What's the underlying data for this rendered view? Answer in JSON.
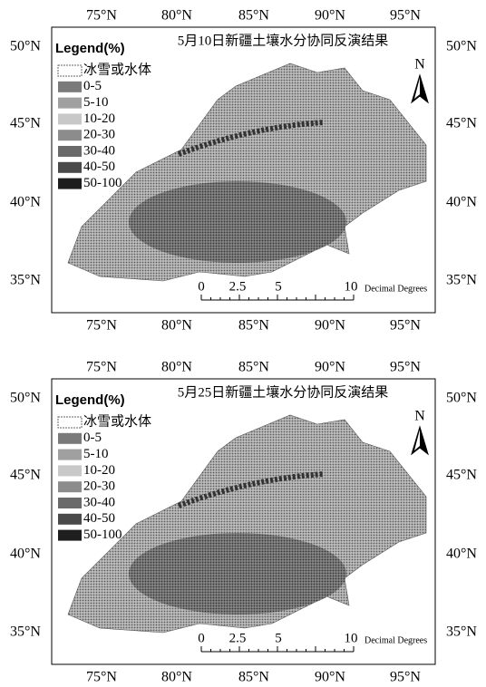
{
  "panels": [
    {
      "title": "5月10日新疆土壤水分协同反演结果",
      "legend_title": "Legend(%)",
      "legend": [
        "冰雪或水体",
        "0-5",
        "5-10",
        "10-20",
        "20-30",
        "30-40",
        "40-50",
        "50-100"
      ],
      "top_labels": [
        "75°N",
        "80°N",
        "85°N",
        "90°N",
        "95°N"
      ],
      "bottom_labels": [
        "75°N",
        "80°N",
        "85°N",
        "90°N",
        "95°N"
      ],
      "left_labels": [
        "50°N",
        "45°N",
        "40°N",
        "35°N"
      ],
      "right_labels": [
        "50°N",
        "45°N",
        "40°N",
        "35°N"
      ],
      "north": "N",
      "scale_labels": [
        "0",
        "2.5",
        "5",
        "10"
      ],
      "scale_unit": "Decimal Degrees"
    },
    {
      "title": "5月25日新疆土壤水分协同反演结果",
      "legend_title": "Legend(%)",
      "legend": [
        "冰雪或水体",
        "0-5",
        "5-10",
        "10-20",
        "20-30",
        "30-40",
        "40-50",
        "50-100"
      ],
      "top_labels": [
        "75°N",
        "80°N",
        "85°N",
        "90°N",
        "95°N"
      ],
      "bottom_labels": [
        "75°N",
        "80°N",
        "85°N",
        "90°N",
        "95°N"
      ],
      "left_labels": [
        "50°N",
        "45°N",
        "40°N",
        "35°N"
      ],
      "right_labels": [
        "50°N",
        "45°N",
        "40°N",
        "35°N"
      ],
      "north": "N",
      "scale_labels": [
        "0",
        "2.5",
        "5",
        "10"
      ],
      "scale_unit": "Decimal Degrees"
    }
  ]
}
